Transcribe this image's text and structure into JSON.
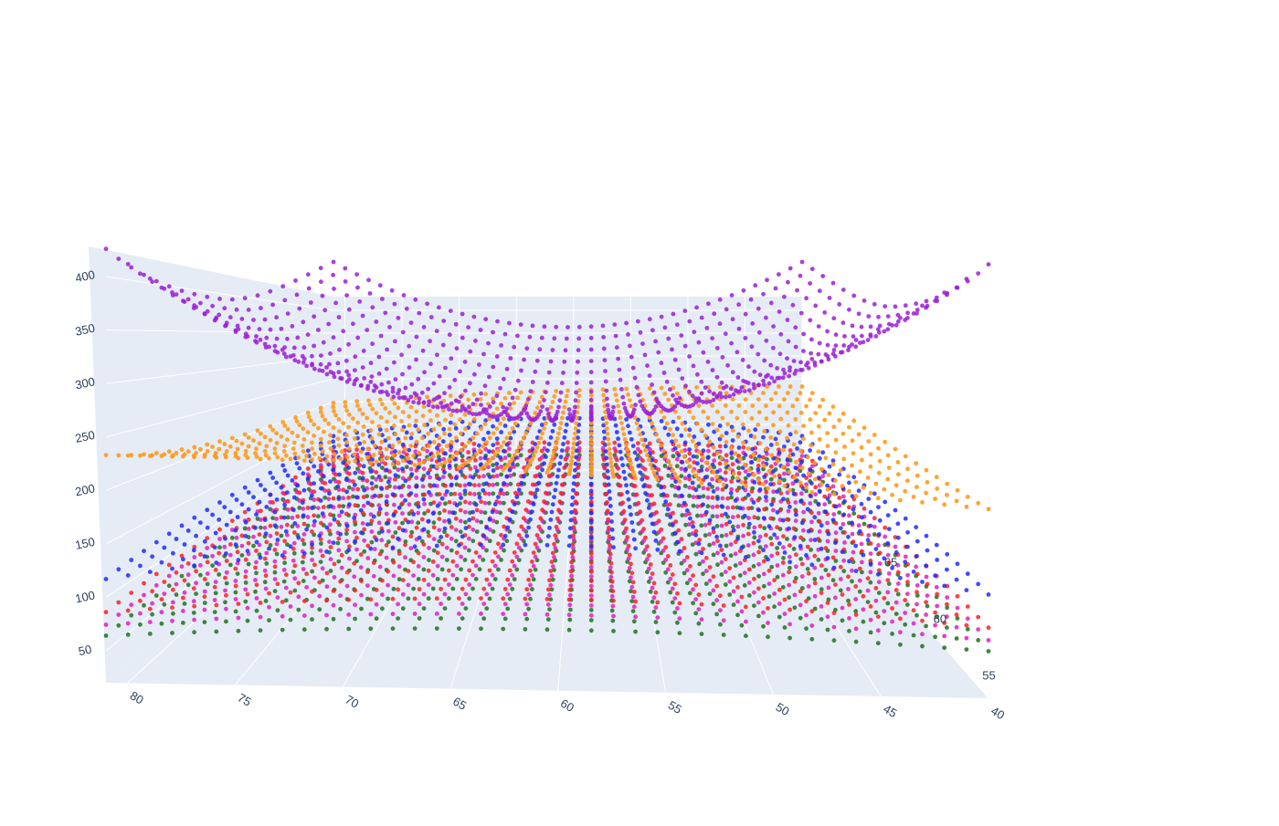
{
  "chart_data": {
    "type": "scatter3d",
    "title": "",
    "axes": {
      "x": {
        "label": "",
        "ticks": [
          80,
          75,
          70,
          65,
          60,
          55,
          50,
          45,
          40
        ],
        "range": [
          40,
          81
        ]
      },
      "y": {
        "label": "",
        "ticks": [
          55,
          60,
          65
        ],
        "range": [
          53,
          72
        ]
      },
      "z": {
        "label": "",
        "ticks": [
          50,
          100,
          150,
          200,
          250,
          300,
          350,
          400
        ],
        "range": [
          20,
          430
        ]
      }
    },
    "grid": true,
    "legend": "none",
    "series": [
      {
        "color": "#1f2bff",
        "form": "bowl",
        "z_center": 165,
        "z_edge": 135,
        "z_far": 180,
        "opacity": 0.85
      },
      {
        "color": "#ff2020",
        "form": "bowl",
        "z_center": 110,
        "z_edge": 95,
        "z_far": 120,
        "opacity": 0.85
      },
      {
        "color": "#e11fbf",
        "form": "bowl",
        "z_center": 95,
        "z_edge": 82,
        "z_far": 108,
        "opacity": 0.85
      },
      {
        "color": "#2a7a2a",
        "form": "bowl",
        "z_center": 80,
        "z_edge": 70,
        "z_far": 92,
        "opacity": 0.9
      },
      {
        "color": "#ff9a1a",
        "form": "saddle",
        "z_center": 215,
        "z_edge": 200,
        "z_far": 230,
        "opacity": 0.9
      },
      {
        "color": "#9b1fd6",
        "form": "bowl",
        "z_center": 250,
        "z_edge": 360,
        "z_far": 410,
        "opacity": 0.85
      }
    ],
    "grid_points": {
      "x": [
        40,
        81,
        41
      ],
      "y": [
        53,
        72,
        19
      ]
    }
  }
}
